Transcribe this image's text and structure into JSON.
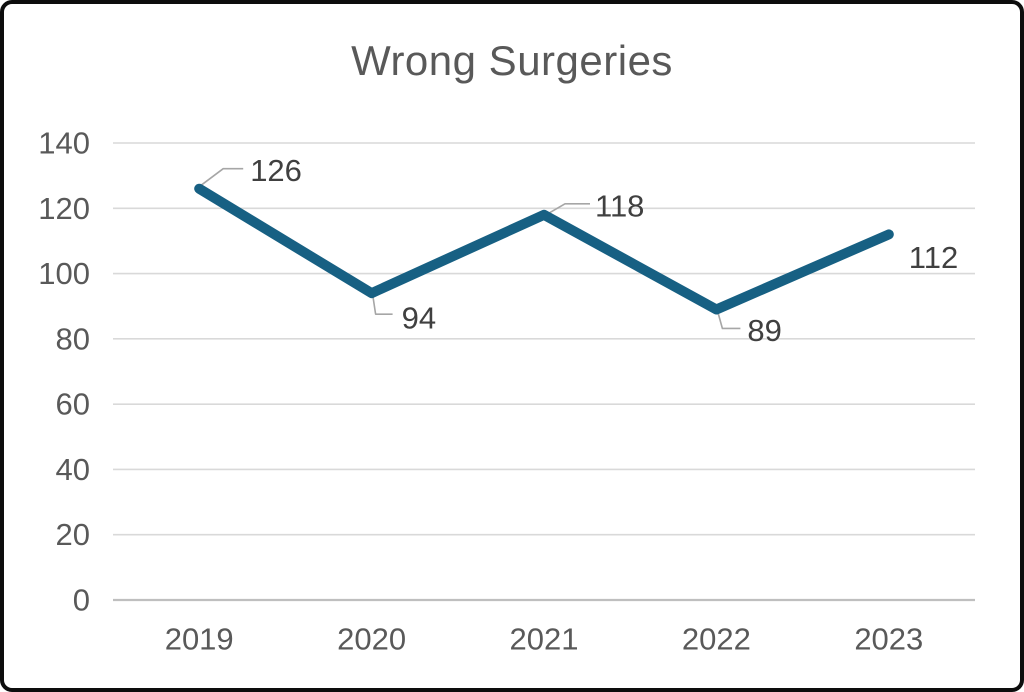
{
  "figure": {
    "border_color": "#0d0d0d",
    "background": "#ffffff"
  },
  "chart_data": {
    "type": "line",
    "title": "Wrong Surgeries",
    "categories": [
      "2019",
      "2020",
      "2021",
      "2022",
      "2023"
    ],
    "series": [
      {
        "name": "Wrong Surgeries",
        "values": [
          126,
          94,
          118,
          89,
          112
        ]
      }
    ],
    "data_labels": [
      "126",
      "94",
      "118",
      "89",
      "112"
    ],
    "yticks": [
      "0",
      "20",
      "40",
      "60",
      "80",
      "100",
      "120",
      "140"
    ],
    "ylim": [
      0,
      140
    ],
    "ytick_step": 20,
    "xlabel": "",
    "ylabel": "",
    "grid": true,
    "legend": "none",
    "colors": {
      "line": "#176083",
      "gridline": "#d9d9d9",
      "axis_line": "#bfbfbf",
      "leader_line": "#a6a6a6",
      "title_text": "#595959",
      "tick_text": "#595959",
      "data_label_text": "#404040"
    }
  }
}
